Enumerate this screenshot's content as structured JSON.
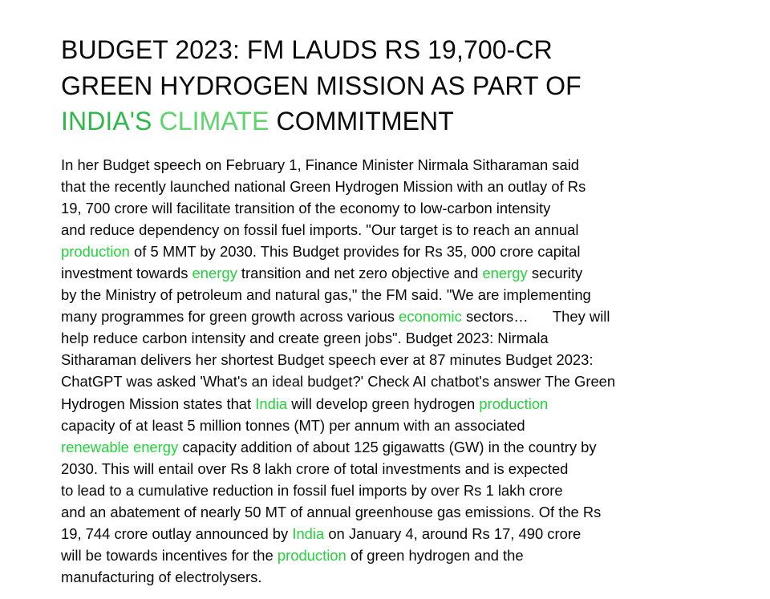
{
  "headline": {
    "line1": "BUDGET 2023: FM LAUDS RS 19,700-CR",
    "line2": "GREEN HYDROGEN MISSION AS PART OF",
    "line3_a": "INDIA'S",
    "line3_b": " ",
    "line3_c": "CLIMATE",
    "line3_d": " COMMITMENT"
  },
  "body": {
    "l1": "In her Budget speech on February 1, Finance Minister Nirmala Sitharaman said",
    "l2": "that the recently launched national Green Hydrogen Mission with an outlay of Rs",
    "l3": "19, 700 crore will facilitate transition of the economy to low-carbon intensity",
    "l4": "and reduce dependency on fossil fuel imports. \"Our target is to reach an annual",
    "l5_kw": "production",
    "l5_rest": " of 5 MMT by 2030. This Budget provides for Rs 35, 000 crore capital",
    "l6_a": "investment towards ",
    "l6_kw1": "energy",
    "l6_b": " transition and net zero objective and ",
    "l6_kw2": "energy",
    "l6_c": " security",
    "l7": "by the Ministry of petroleum and natural gas,\" the FM said. \"We are implementing",
    "l8_a": "many programmes for green growth across various ",
    "l8_kw": "economic",
    "l8_b": " sectors…      They will",
    "l9": "help reduce carbon intensity and create green jobs\". Budget 2023: Nirmala",
    "l10": "Sitharaman delivers her shortest Budget speech ever at 87 minutes Budget 2023:",
    "l11": "ChatGPT was asked 'What's an ideal budget?' Check AI chatbot's answer The Green",
    "l12_a": "Hydrogen Mission states that ",
    "l12_kw1": "India",
    "l12_b": " will develop green hydrogen ",
    "l12_kw2": "production",
    "l13": "capacity of at least 5 million tonnes (MT) per annum with an associated",
    "l14_kw": "renewable energy",
    "l14_rest": " capacity addition of about 125 gigawatts (GW) in the country by",
    "l15": "2030. This will entail over Rs 8 lakh crore of total investments and is expected",
    "l16": "to lead to a cumulative reduction in fossil fuel imports by over Rs 1 lakh crore",
    "l17": "and an abatement of nearly 50 MT of annual greenhouse gas emissions. Of the Rs",
    "l18_a": "19, 744 crore outlay announced by ",
    "l18_kw": "India",
    "l18_b": " on January 4, around Rs 17, 490 crore",
    "l19_a": "will be towards incentives for the ",
    "l19_kw": "production",
    "l19_b": " of green hydrogen and the",
    "l20": "manufacturing of electrolysers."
  },
  "colors": {
    "text": "#0a0a0a",
    "keyword_green": "#22d33a",
    "headline_green_1": "#2fb84a",
    "headline_green_2": "#5fd36c"
  }
}
